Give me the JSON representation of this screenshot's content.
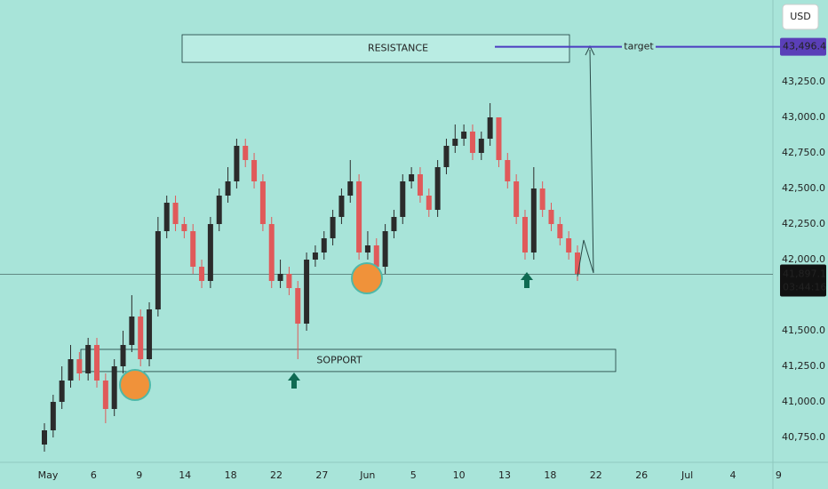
{
  "chart_data": {
    "type": "candlestick",
    "currency": "USD",
    "categories": [
      "May",
      "6",
      "9",
      "14",
      "18",
      "22",
      "27",
      "Jun",
      "5",
      "10",
      "13",
      "18",
      "22",
      "26",
      "Jul",
      "4",
      "9"
    ],
    "ylim": [
      40575,
      43825
    ],
    "yticks": [
      {
        "value": 40750,
        "label": "40,750.0"
      },
      {
        "value": 41000,
        "label": "41,000.0"
      },
      {
        "value": 41250,
        "label": "41,250.0"
      },
      {
        "value": 41500,
        "label": "41,500.0"
      },
      {
        "value": 42000,
        "label": "42,000.0"
      },
      {
        "value": 42250,
        "label": "42,250.0"
      },
      {
        "value": 42500,
        "label": "42,500.0"
      },
      {
        "value": 42750,
        "label": "42,750.0"
      },
      {
        "value": 43000,
        "label": "43,000.0"
      },
      {
        "value": 43250,
        "label": "43,250.0"
      }
    ],
    "grid": false,
    "up_color": "#2b2b2b",
    "down_color": "#e05a5a",
    "open": [
      40700,
      40800,
      41000,
      41150,
      41300,
      41200,
      41400,
      41150,
      40950,
      41250,
      41400,
      41600,
      41300,
      41650,
      42200,
      42400,
      42250,
      42200,
      41950,
      41850,
      42250,
      42450,
      42550,
      42800,
      42700,
      42550,
      42250,
      41850,
      41900,
      41800,
      41550,
      42000,
      42050,
      42150,
      42300,
      42450,
      42550,
      42050,
      42100,
      41950,
      42200,
      42300,
      42550,
      42600,
      42450,
      42350,
      42650,
      42800,
      42850,
      42900,
      42750,
      42850,
      43000,
      42700,
      42550,
      42300,
      42050,
      42500,
      42350,
      42250,
      42150,
      42050
    ],
    "high": [
      40850,
      41050,
      41250,
      41400,
      41350,
      41450,
      41450,
      41200,
      41300,
      41500,
      41750,
      41650,
      41700,
      42300,
      42450,
      42450,
      42300,
      42250,
      42000,
      42300,
      42500,
      42650,
      42850,
      42850,
      42750,
      42600,
      42300,
      42000,
      41950,
      41850,
      42050,
      42100,
      42200,
      42350,
      42500,
      42700,
      42600,
      42200,
      42150,
      42250,
      42350,
      42600,
      42650,
      42650,
      42500,
      42700,
      42850,
      42950,
      42950,
      42950,
      42900,
      43100,
      43000,
      42750,
      42600,
      42350,
      42650,
      42550,
      42400,
      42300,
      42200,
      42100
    ],
    "low": [
      40650,
      40750,
      40950,
      41100,
      41150,
      41150,
      41100,
      40850,
      40900,
      41200,
      41350,
      41250,
      41250,
      41600,
      42150,
      42200,
      42150,
      41900,
      41800,
      41800,
      42200,
      42400,
      42500,
      42650,
      42500,
      42200,
      41800,
      41800,
      41750,
      41300,
      41500,
      41950,
      42000,
      42100,
      42250,
      42400,
      42000,
      42000,
      41900,
      41900,
      42150,
      42250,
      42500,
      42400,
      42300,
      42300,
      42600,
      42750,
      42800,
      42700,
      42700,
      42800,
      42650,
      42500,
      42250,
      42000,
      42000,
      42300,
      42200,
      42100,
      42000,
      41850
    ],
    "close": [
      40800,
      41000,
      41150,
      41300,
      41200,
      41400,
      41150,
      40950,
      41250,
      41400,
      41600,
      41300,
      41650,
      42200,
      42400,
      42250,
      42200,
      41950,
      41850,
      42250,
      42450,
      42550,
      42800,
      42700,
      42550,
      42250,
      41850,
      41900,
      41800,
      41550,
      42000,
      42050,
      42150,
      42300,
      42450,
      42550,
      42050,
      42100,
      41950,
      42200,
      42300,
      42550,
      42600,
      42450,
      42350,
      42650,
      42800,
      42850,
      42900,
      42750,
      42850,
      43000,
      42700,
      42550,
      42300,
      42050,
      42500,
      42350,
      42250,
      42150,
      42050,
      41900
    ],
    "resistance": {
      "label": "RESISTANCE",
      "range": [
        43387,
        43581
      ]
    },
    "support": {
      "label": "SOPPORT",
      "range": [
        41213,
        41369
      ]
    },
    "target": {
      "text": "target",
      "value": 43496.4,
      "label": "43,496.4"
    },
    "last_price": {
      "value": 41897.1,
      "label": "41,897.1",
      "countdown": "03:44:16"
    }
  }
}
